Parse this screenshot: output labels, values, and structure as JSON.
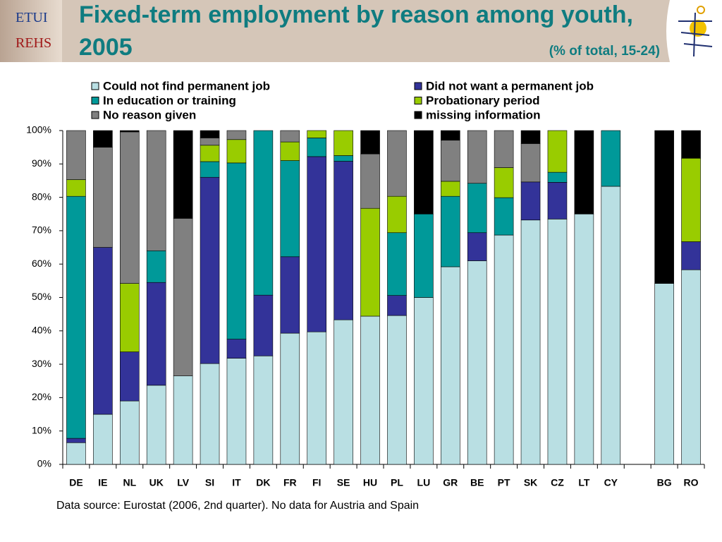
{
  "header": {
    "logo_top": "ETUI",
    "logo_bottom": "REHS"
  },
  "chart_data": {
    "type": "stacked_bar",
    "title": "Fixed-term employment by reason among youth, 2005",
    "subtitle": "(% of total, 15-24)",
    "note": "Data source: Eurostat (2006, 2nd quarter).  No data for Austria and Spain",
    "categories": [
      "DE",
      "IE",
      "NL",
      "UK",
      "LV",
      "SI",
      "IT",
      "DK",
      "FR",
      "FI",
      "SE",
      "HU",
      "PL",
      "LU",
      "GR",
      "BE",
      "PT",
      "SK",
      "CZ",
      "LT",
      "CY",
      null,
      "BG",
      "RO"
    ],
    "series": [
      {
        "name": "Could not find permanent job",
        "color": "#b9dfe3",
        "values": [
          6.5,
          15,
          19,
          23.7,
          26.5,
          30.2,
          31.8,
          32.5,
          39.3,
          39.7,
          43.3,
          44.4,
          44.6,
          50,
          59.2,
          61,
          68.7,
          73.2,
          73.5,
          75,
          83.3,
          null,
          54.2,
          58.3
        ]
      },
      {
        "name": "Did not want a permanent job",
        "color": "#333399",
        "values": [
          1.3,
          50,
          14.7,
          30.8,
          0,
          55.8,
          5.7,
          18.2,
          22.9,
          52.5,
          47.5,
          0,
          6,
          0,
          0,
          8.4,
          0,
          11.4,
          11,
          0,
          0,
          null,
          0,
          8.4
        ]
      },
      {
        "name": "In education or training",
        "color": "#009999",
        "values": [
          72.5,
          0,
          0,
          9.5,
          0,
          4.7,
          52.8,
          49.3,
          28.8,
          5.6,
          1.7,
          0,
          18.8,
          25,
          21.1,
          14.8,
          11.2,
          0,
          3,
          0,
          16.7,
          null,
          0,
          0
        ]
      },
      {
        "name": "Probationary period",
        "color": "#99cc00",
        "values": [
          5,
          0,
          20.5,
          0,
          0,
          4.9,
          7,
          0,
          5.6,
          2.2,
          7.5,
          32.3,
          10.9,
          0,
          4.5,
          0,
          9,
          0,
          12.5,
          0,
          0,
          null,
          0,
          25
        ]
      },
      {
        "name": "No reason given",
        "color": "#808080",
        "values": [
          14.7,
          30,
          45.4,
          36,
          47.2,
          2.2,
          2.7,
          0,
          3.4,
          0,
          0,
          16.3,
          19.7,
          0,
          12.3,
          15.8,
          11.1,
          11.5,
          0,
          0,
          0,
          null,
          0,
          0
        ]
      },
      {
        "name": "missing information",
        "color": "#000000",
        "values": [
          0,
          5,
          0.4,
          0,
          26.3,
          2.2,
          0,
          0,
          0,
          0,
          0,
          7,
          0,
          25,
          2.9,
          0,
          0,
          3.9,
          0,
          25,
          0,
          null,
          45.8,
          8.3
        ]
      }
    ],
    "ylim": [
      0,
      100
    ],
    "yticks": [
      {
        "value": 0,
        "label": "0%"
      },
      {
        "value": 10,
        "label": "10%"
      },
      {
        "value": 20,
        "label": "20%"
      },
      {
        "value": 30,
        "label": "30%"
      },
      {
        "value": 40,
        "label": "40%"
      },
      {
        "value": 50,
        "label": "50%"
      },
      {
        "value": 60,
        "label": "60%"
      },
      {
        "value": 70,
        "label": "70%"
      },
      {
        "value": 80,
        "label": "80%"
      },
      {
        "value": 90,
        "label": "90%"
      },
      {
        "value": 100,
        "label": "100%"
      }
    ]
  }
}
